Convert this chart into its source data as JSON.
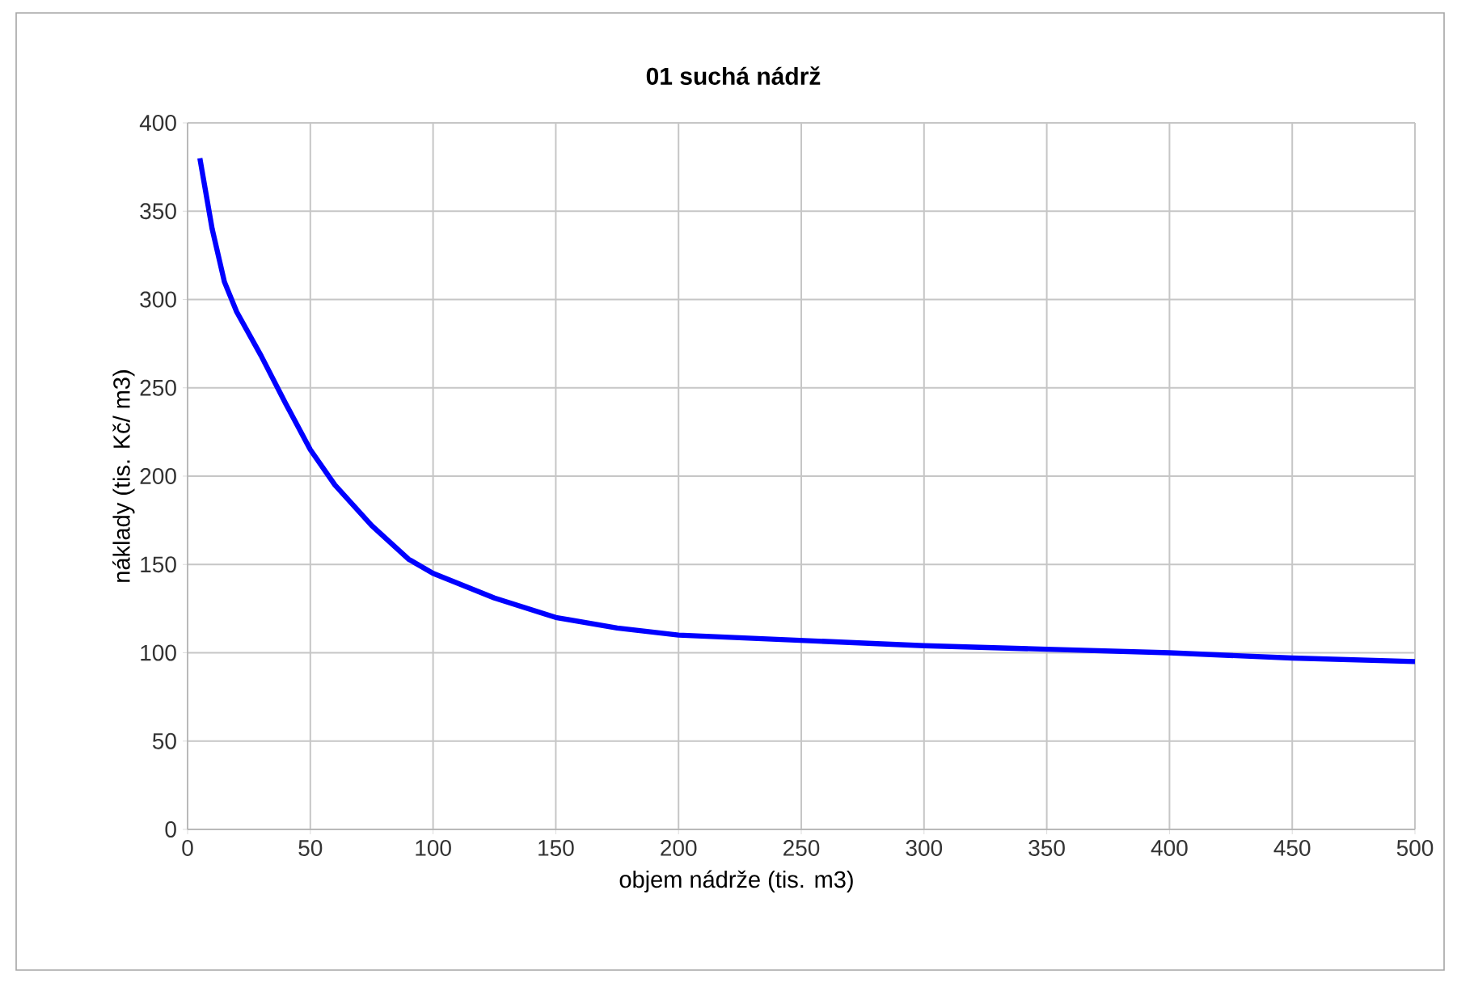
{
  "chart_data": {
    "type": "line",
    "title": "01 suchá nádrž",
    "xlabel": "objem nádrže (tis. m3)",
    "ylabel": "náklady (tis. Kč/ m3)",
    "series": [
      {
        "color": "#0000ff",
        "x": [
          5,
          10,
          15,
          20,
          30,
          40,
          50,
          60,
          75,
          90,
          100,
          125,
          150,
          175,
          200,
          250,
          300,
          350,
          400,
          450,
          500
        ],
        "values": [
          380,
          340,
          310,
          293,
          268,
          241,
          215,
          195,
          172,
          153,
          145,
          131,
          120,
          114,
          110,
          107,
          104,
          102,
          100,
          97,
          95
        ]
      }
    ],
    "xlim": [
      0,
      500
    ],
    "xticks": [
      0,
      50,
      100,
      150,
      200,
      250,
      300,
      350,
      400,
      450,
      500
    ],
    "ylim": [
      0,
      400
    ],
    "yticks": [
      0,
      50,
      100,
      150,
      200,
      250,
      300,
      350,
      400
    ],
    "grid": true,
    "marker": "none",
    "line_style": "solid"
  }
}
